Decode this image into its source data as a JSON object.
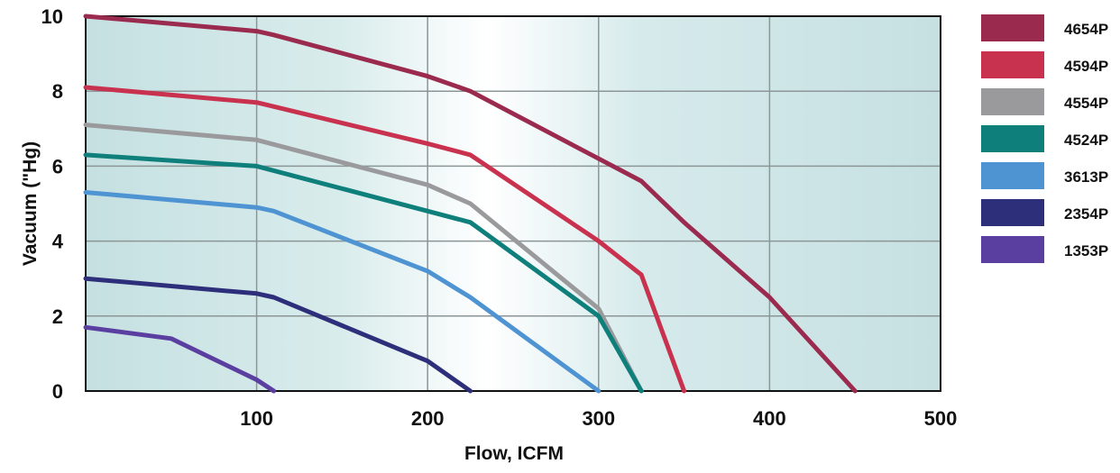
{
  "chart_data": {
    "type": "line",
    "title": "",
    "xlabel": "Flow, ICFM",
    "ylabel": "Vacuum (\"Hg)",
    "xlim": [
      0,
      500
    ],
    "ylim": [
      0,
      10
    ],
    "x_ticks": [
      "100",
      "200",
      "300",
      "400",
      "500"
    ],
    "y_ticks": [
      "0",
      "2",
      "4",
      "6",
      "8",
      "10"
    ],
    "grid": true,
    "legend_position": "right",
    "series": [
      {
        "name": "4654P",
        "color": "#9b2a4f",
        "points": [
          [
            0,
            10
          ],
          [
            100,
            9.6
          ],
          [
            110,
            9.5
          ],
          [
            200,
            8.4
          ],
          [
            225,
            8.0
          ],
          [
            300,
            6.2
          ],
          [
            325,
            5.6
          ],
          [
            350,
            4.5
          ],
          [
            400,
            2.5
          ],
          [
            450,
            0
          ]
        ]
      },
      {
        "name": "4594P",
        "color": "#c9324f",
        "points": [
          [
            0,
            8.1
          ],
          [
            100,
            7.7
          ],
          [
            200,
            6.6
          ],
          [
            225,
            6.3
          ],
          [
            300,
            4.0
          ],
          [
            325,
            3.1
          ],
          [
            350,
            0
          ]
        ]
      },
      {
        "name": "4554P",
        "color": "#9a9a9d",
        "points": [
          [
            0,
            7.1
          ],
          [
            100,
            6.7
          ],
          [
            200,
            5.5
          ],
          [
            225,
            5.0
          ],
          [
            300,
            2.2
          ],
          [
            325,
            0
          ]
        ]
      },
      {
        "name": "4524P",
        "color": "#0e7f7b",
        "points": [
          [
            0,
            6.3
          ],
          [
            100,
            6.0
          ],
          [
            200,
            4.8
          ],
          [
            225,
            4.5
          ],
          [
            300,
            2.0
          ],
          [
            325,
            0
          ]
        ]
      },
      {
        "name": "3613P",
        "color": "#4e93d2",
        "points": [
          [
            0,
            5.3
          ],
          [
            100,
            4.9
          ],
          [
            110,
            4.8
          ],
          [
            200,
            3.2
          ],
          [
            225,
            2.5
          ],
          [
            300,
            0
          ]
        ]
      },
      {
        "name": "2354P",
        "color": "#2e2f7a",
        "points": [
          [
            0,
            3.0
          ],
          [
            100,
            2.6
          ],
          [
            110,
            2.5
          ],
          [
            200,
            0.8
          ],
          [
            225,
            0
          ]
        ]
      },
      {
        "name": "1353P",
        "color": "#5b3fa0",
        "points": [
          [
            0,
            1.7
          ],
          [
            50,
            1.4
          ],
          [
            100,
            0.3
          ],
          [
            110,
            0
          ]
        ]
      }
    ]
  }
}
